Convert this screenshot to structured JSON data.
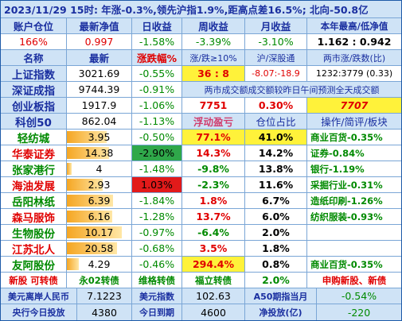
{
  "title": "2023/11/29  15时: 年涨-0.3%,领先沪指1.9%,距高点差16.5%; 北向-50.8亿",
  "account": {
    "headers": [
      "账户仓位",
      "最新净值",
      "日收益",
      "周收益",
      "月收益",
      "本年最高/低净值"
    ],
    "values": [
      "166%",
      "0.997",
      "-1.58%",
      "-3.39%",
      "-3.10%",
      "1.162 : 0.942"
    ]
  },
  "index_header": [
    "名称",
    "最新",
    "涨跌幅%",
    "涨/跌≥10%",
    "沪/深股通",
    "两市涨/跌数(比)"
  ],
  "indices": [
    {
      "name": "上证指数",
      "price": "3021.69",
      "change": "-0.55%",
      "extra": "36 : 8",
      "extra2": "-8.07:-18.9",
      "extra3": "1232:3779 (0.33)"
    },
    {
      "name": "深证成指",
      "price": "9744.39",
      "change": "-0.91%",
      "note": "两市成交额成交额较昨日午间预测全天成交额"
    },
    {
      "name": "创业板指",
      "price": "1917.9",
      "change": "-1.06%",
      "extra": "7751",
      "extra2": "0.30%",
      "extra3": "7707"
    },
    {
      "name": "科创50",
      "price": "862.04",
      "change": "-1.13%",
      "extra": "浮动盈亏",
      "extra2": "仓位占比",
      "extra3": "操作/简评/板块"
    }
  ],
  "stocks": [
    {
      "name": "轻纺城",
      "price": "3.95",
      "change": "-0.50%",
      "pnl": "77.1%",
      "pos": "41.0%",
      "note": "商业百货-0.35%"
    },
    {
      "name": "华泰证券",
      "price": "14.38",
      "change": "-2.90%",
      "pnl": "14.3%",
      "pos": "14.2%",
      "note": "证券-0.84%"
    },
    {
      "name": "张家港行",
      "price": "4",
      "change": "-1.48%",
      "pnl": "-9.8%",
      "pos": "13.8%",
      "note": "银行-1.19%"
    },
    {
      "name": "海油发展",
      "price": "2.93",
      "change": "1.03%",
      "pnl": "-2.3%",
      "pos": "11.6%",
      "note": "采掘行业-0.31%"
    },
    {
      "name": "岳阳林纸",
      "price": "6.39",
      "change": "-1.84%",
      "pnl": "1.8%",
      "pos": "6.7%",
      "note": "造纸印刷-1.26%"
    },
    {
      "name": "森马服饰",
      "price": "6.16",
      "change": "-1.28%",
      "pnl": "13.7%",
      "pos": "6.0%",
      "note": "纺织服装-0.93%"
    },
    {
      "name": "生物股份",
      "price": "10.17",
      "change": "-0.97%",
      "pnl": "-6.4%",
      "pos": "2.0%",
      "note": ""
    },
    {
      "name": "江苏北人",
      "price": "20.58",
      "change": "-0.68%",
      "pnl": "3.5%",
      "pos": "1.8%",
      "note": ""
    },
    {
      "name": "友阿股份",
      "price": "4.29",
      "change": "-0.46%",
      "pnl": "294.4%",
      "pos": "0.8%",
      "note": "商业百货-0.35%"
    }
  ],
  "bonds": [
    "新股 可转债",
    "永02转债",
    "维格转债",
    "福立转债",
    "2.0%",
    "申购新股、新债"
  ],
  "footer1": [
    "美元离岸人民币",
    "7.1223",
    "美元指数",
    "102.63",
    "A50期指当月",
    "-0.54%"
  ],
  "footer2": [
    "央行今日投放",
    "4380",
    "今日到期",
    "4600",
    "净投放(亿)",
    "-220"
  ]
}
